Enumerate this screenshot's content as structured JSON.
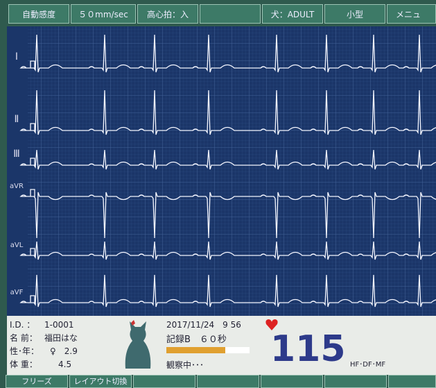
{
  "top_bar": {
    "buttons": [
      "自動感度",
      "５０mm/sec",
      "高心拍：入",
      "犬：ADULT",
      "小型",
      "メニュ"
    ]
  },
  "leads": [
    "Ⅰ",
    "Ⅱ",
    "Ⅲ",
    "aVR",
    "aVL",
    "aVF"
  ],
  "patient": [
    {
      "label": "I.D. ：",
      "value": "1-0001"
    },
    {
      "label": "名 前：",
      "value": "福田はな"
    },
    {
      "label": "性･年：",
      "value": "♀　2.9"
    },
    {
      "label": "体 重：",
      "value": "4.5"
    }
  ],
  "status": {
    "datetime": "2017/11/24　9 56",
    "record": "記録B　６０秒",
    "state": "観察中･･･",
    "heart_rate": 115,
    "mode": "HF･DF･MF"
  },
  "bottom_bar": {
    "buttons": [
      "フリーズ",
      "レイアウト切換"
    ]
  }
}
